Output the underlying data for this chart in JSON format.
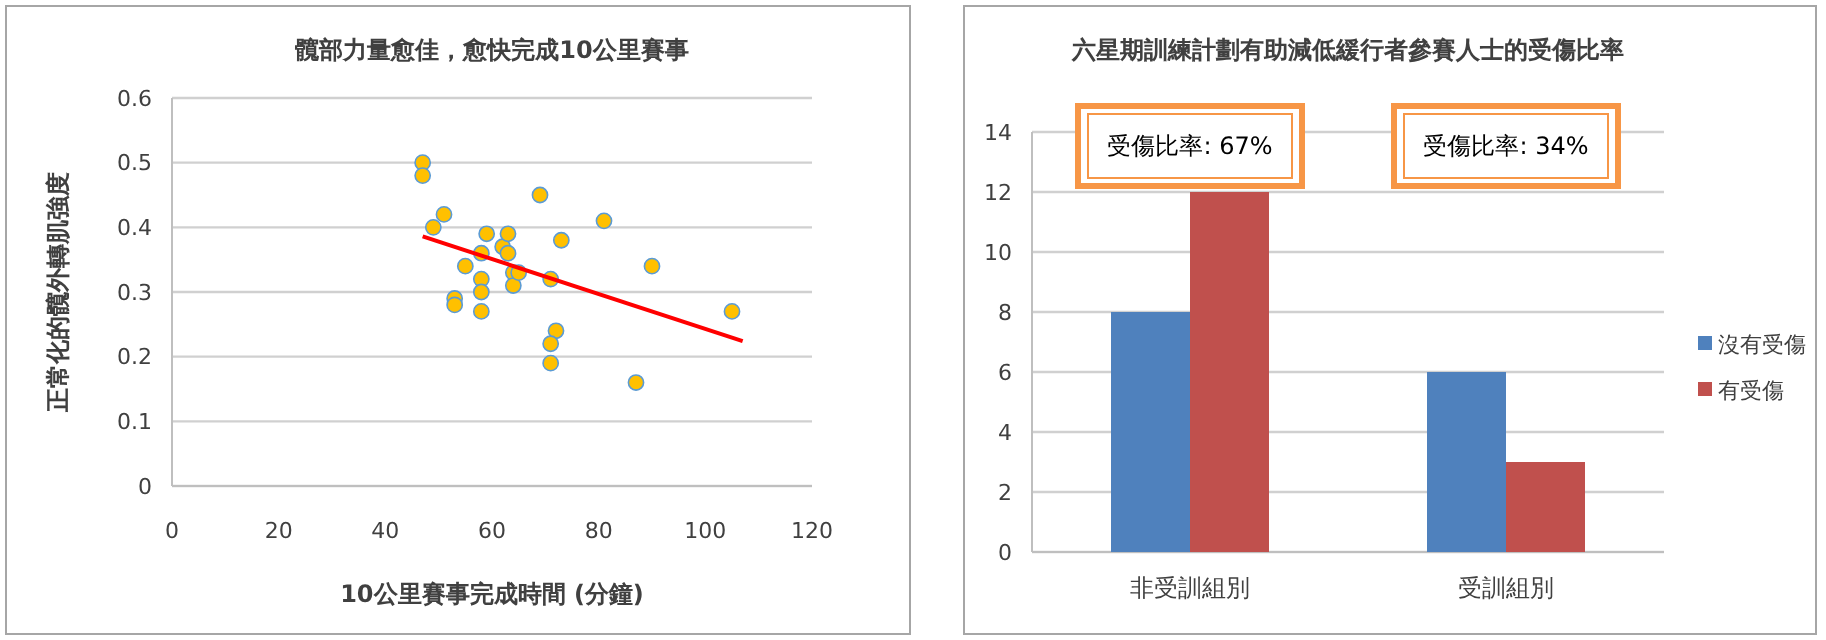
{
  "chart_data": [
    {
      "type": "scatter",
      "title": "髖部力量愈佳，愈快完成10公里賽事",
      "xlabel": "10公里賽事完成時間 (分鐘)",
      "ylabel": "正常化的髖外轉肌強度",
      "xlim": [
        0,
        120
      ],
      "xticks": [
        0,
        20,
        40,
        60,
        80,
        100,
        120
      ],
      "ylim": [
        0,
        0.6
      ],
      "yticks": [
        0,
        {
          "value": 0.1,
          "label": "0.1"
        },
        {
          "value": 0.2,
          "label": "0.2"
        },
        {
          "value": 0.3,
          "label": "0.3"
        },
        {
          "value": 0.4,
          "label": "0.4"
        },
        {
          "value": 0.5,
          "label": "0.5"
        },
        {
          "value": 0.6,
          "label": "0.6"
        }
      ],
      "grid": "y",
      "series": [
        {
          "type": "scatter",
          "marker": "circle",
          "color": "#ffc000",
          "x": [
            47,
            47,
            49,
            51,
            53,
            53,
            55,
            58,
            58,
            58,
            58,
            59,
            62,
            63,
            63,
            64,
            64,
            65,
            69,
            71,
            72,
            71,
            71,
            73,
            81,
            87,
            90,
            105
          ],
          "values": [
            0.5,
            0.48,
            0.4,
            0.42,
            0.29,
            0.28,
            0.34,
            0.36,
            0.32,
            0.3,
            0.27,
            0.39,
            0.37,
            0.39,
            0.36,
            0.33,
            0.31,
            0.33,
            0.45,
            0.32,
            0.24,
            0.22,
            0.19,
            0.38,
            0.41,
            0.16,
            0.34,
            0.27
          ]
        },
        {
          "type": "line",
          "color": "#ff0000",
          "x": [
            47,
            107
          ],
          "values": [
            0.386,
            0.224
          ]
        }
      ]
    },
    {
      "type": "bar",
      "title": "六星期訓練計劃有助減低緩行者參賽人士的受傷比率",
      "categories": [
        "非受訓組別",
        "受訓組別"
      ],
      "ylim": [
        0,
        14
      ],
      "yticks": [
        0,
        2,
        4,
        6,
        8,
        10,
        12,
        14
      ],
      "grid": "y",
      "legend": "right",
      "series": [
        {
          "name": "沒有受傷",
          "color": "#4f81bd",
          "values": [
            8,
            6
          ]
        },
        {
          "name": "有受傷",
          "color": "#c0504d",
          "values": [
            12,
            3
          ]
        }
      ],
      "annotations": [
        "受傷比率: 67%",
        "受傷比率: 34%"
      ]
    }
  ]
}
